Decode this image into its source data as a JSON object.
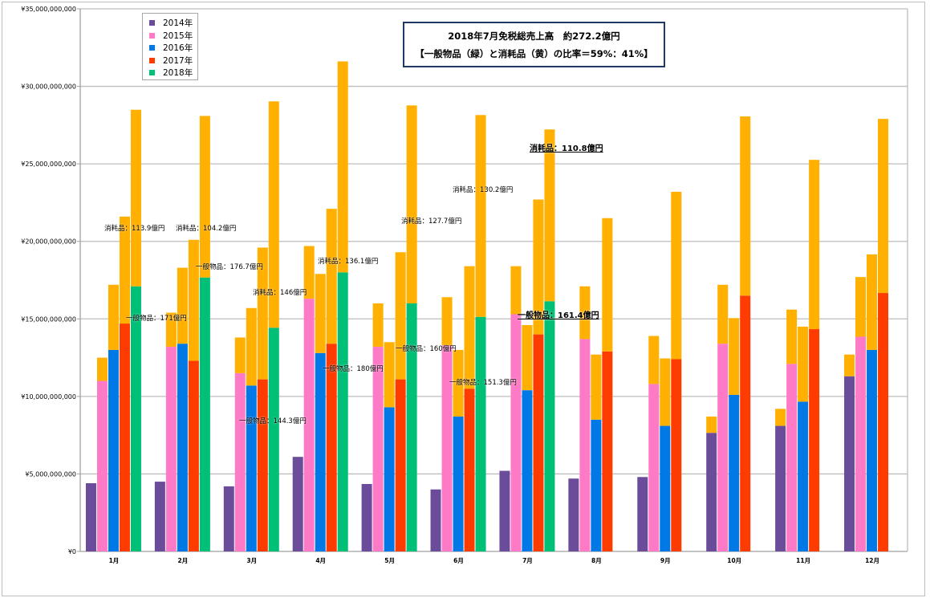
{
  "chart_data": {
    "type": "bar",
    "stacked": true,
    "title_lines": [
      "2018年7月免税総売上高　約272.2億円",
      "【一般物品（緑）と消耗品（黄）の比率＝59%：41%】"
    ],
    "categories": [
      "1月",
      "2月",
      "3月",
      "4月",
      "5月",
      "6月",
      "7月",
      "8月",
      "9月",
      "10月",
      "11月",
      "12月"
    ],
    "value_unit": "億円",
    "ylim": [
      0,
      350
    ],
    "yticks": [
      0,
      50,
      100,
      150,
      200,
      250,
      300,
      350
    ],
    "ytick_labels": [
      "¥0",
      "¥5,000,000,000",
      "¥10,000,000,000",
      "¥15,000,000,000",
      "¥20,000,000,000",
      "¥25,000,000,000",
      "¥30,000,000,000",
      "¥35,000,000,000"
    ],
    "grid": true,
    "legend_position": "top-left",
    "consumables_color": "#FFB000",
    "series": [
      {
        "name": "2014年",
        "color": "#6B4C9A",
        "general": [
          44,
          45,
          42,
          61,
          43.5,
          40,
          52,
          47,
          48,
          76.5,
          81,
          113
        ],
        "consumables": [
          0,
          0,
          0,
          0,
          0,
          0,
          0,
          0,
          0,
          10.5,
          11,
          14
        ]
      },
      {
        "name": "2015年",
        "color": "#FF7AC6",
        "general": [
          110,
          132,
          115,
          163,
          132,
          133,
          153,
          137,
          108,
          134,
          121,
          138.5
        ],
        "consumables": [
          15,
          22,
          23,
          34,
          28,
          31,
          31,
          34,
          31,
          38,
          35,
          38.5
        ]
      },
      {
        "name": "2016年",
        "color": "#0078E6",
        "general": [
          130,
          134,
          107,
          128,
          93,
          87,
          104,
          85,
          81,
          101,
          96.6,
          130
        ],
        "consumables": [
          42,
          49,
          50,
          51,
          42,
          43,
          42,
          42,
          43.5,
          49.5,
          48.4,
          61.6
        ]
      },
      {
        "name": "2017年",
        "color": "#FF3C00",
        "general": [
          147,
          123,
          111,
          134,
          111,
          105,
          140,
          129,
          124,
          165,
          143.4,
          166.7
        ],
        "consumables": [
          69,
          78,
          85,
          87,
          82,
          79,
          87,
          86,
          108,
          115.6,
          109.2,
          112.3
        ]
      },
      {
        "name": "2018年",
        "color": "#00C078",
        "general": [
          171,
          176.7,
          144.3,
          180,
          160,
          151.3,
          161.4,
          null,
          null,
          null,
          null,
          null
        ],
        "consumables": [
          113.9,
          104.2,
          146,
          136.1,
          127.7,
          130.2,
          110.8,
          null,
          null,
          null,
          null,
          null
        ]
      }
    ],
    "annotations": [
      {
        "month": "1月",
        "consumables": "消耗品：113.9億円",
        "general": "一般物品：171億円"
      },
      {
        "month": "2月",
        "consumables": "消耗品：104.2億円",
        "general": "一般物品：176.7億円"
      },
      {
        "month": "3月",
        "consumables": "消耗品：146億円",
        "general": "一般物品：144.3億円"
      },
      {
        "month": "4月",
        "consumables": "消耗品：136.1億円",
        "general": "一般物品：180億円"
      },
      {
        "month": "5月",
        "consumables": "消耗品：127.7億円",
        "general": "一般物品：160億円"
      },
      {
        "month": "6月",
        "consumables": "消耗品：130.2億円",
        "general": "一般物品：151.3億円"
      },
      {
        "month": "7月",
        "consumables": "消耗品：110.8億円",
        "general": "一般物品：161.4億円",
        "highlight": true
      }
    ]
  }
}
